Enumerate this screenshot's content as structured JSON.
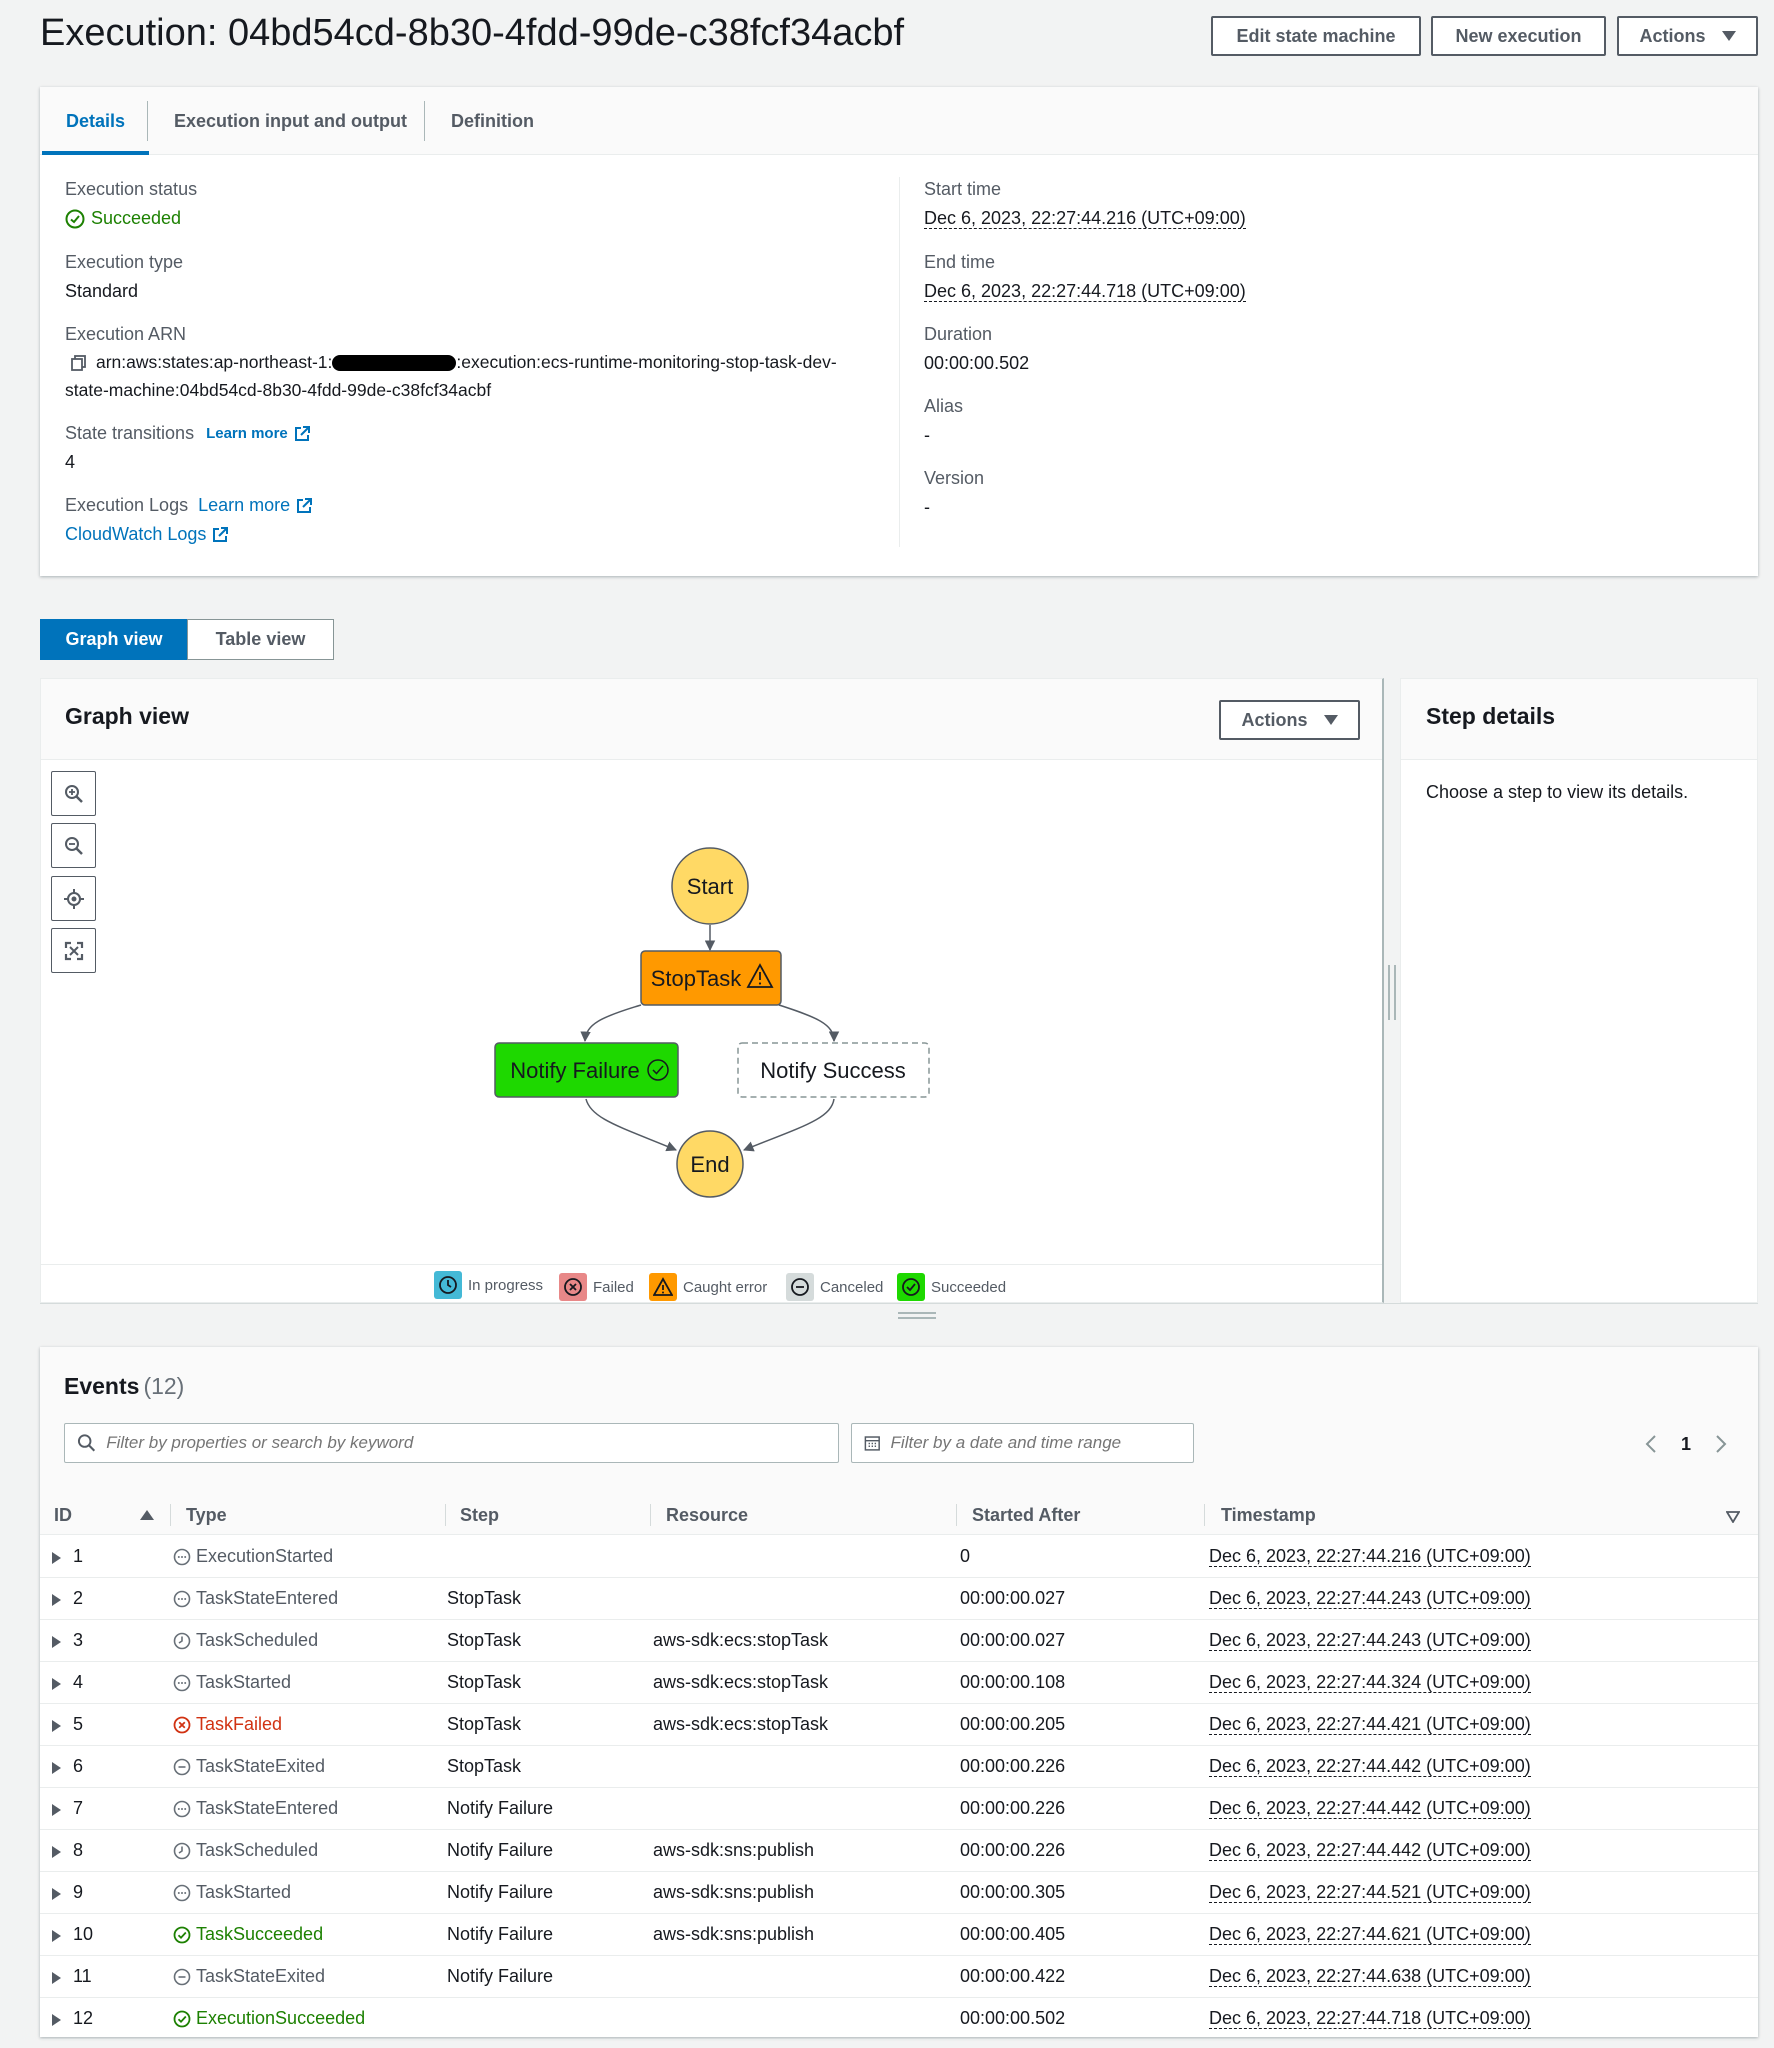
{
  "page": {
    "title": "Execution: 04bd54cd-8b30-4fdd-99de-c38fcf34acbf",
    "buttons": {
      "edit": "Edit state machine",
      "new_execution": "New execution",
      "actions": "Actions"
    }
  },
  "details": {
    "tabs": [
      "Details",
      "Execution input and output",
      "Definition"
    ],
    "execution_status_label": "Execution status",
    "execution_status": "Succeeded",
    "execution_type_label": "Execution type",
    "execution_type": "Standard",
    "execution_arn_label": "Execution ARN",
    "execution_arn_line1_prefix": "arn:aws:states:ap-northeast-1:",
    "execution_arn_line1_suffix": ":execution:ecs-runtime-monitoring-stop-task-dev-",
    "execution_arn_line2": "state-machine:04bd54cd-8b30-4fdd-99de-c38fcf34acbf",
    "state_transitions_label": "State transitions",
    "state_transitions_learn_more": "Learn more",
    "state_transitions": "4",
    "execution_logs_label": "Execution Logs",
    "execution_logs_learn_more": "Learn more",
    "cloudwatch_logs": "CloudWatch Logs",
    "start_time_label": "Start time",
    "start_time": "Dec 6, 2023, 22:27:44.216 (UTC+09:00)",
    "end_time_label": "End time",
    "end_time": "Dec 6, 2023, 22:27:44.718 (UTC+09:00)",
    "duration_label": "Duration",
    "duration": "00:00:00.502",
    "alias_label": "Alias",
    "alias": "-",
    "version_label": "Version",
    "version": "-"
  },
  "view_toggle": {
    "graph": "Graph view",
    "table": "Table view"
  },
  "graph": {
    "title": "Graph view",
    "actions": "Actions",
    "nodes": {
      "start": "Start",
      "stop_task": "StopTask",
      "notify_failure": "Notify Failure",
      "notify_success": "Notify Success",
      "end": "End"
    },
    "legend": {
      "in_progress": "In progress",
      "failed": "Failed",
      "caught_error": "Caught error",
      "canceled": "Canceled",
      "succeeded": "Succeeded"
    },
    "colors": {
      "start_end": "#ffd965",
      "stop_task": "#ff9900",
      "notify_failure": "#1ed800"
    }
  },
  "step_details": {
    "title": "Step details",
    "message": "Choose a step to view its details."
  },
  "events": {
    "title": "Events",
    "count": "(12)",
    "filter_placeholder": "Filter by properties or search by keyword",
    "date_placeholder": "Filter by a date and time range",
    "page": "1",
    "columns": {
      "id": "ID",
      "type": "Type",
      "step": "Step",
      "resource": "Resource",
      "started_after": "Started After",
      "timestamp": "Timestamp"
    },
    "rows": [
      {
        "id": "1",
        "type": "ExecutionStarted",
        "status": "neutral",
        "step": "",
        "resource": "",
        "started_after": "0",
        "timestamp": "Dec 6, 2023, 22:27:44.216 (UTC+09:00)"
      },
      {
        "id": "2",
        "type": "TaskStateEntered",
        "status": "neutral",
        "step": "StopTask",
        "resource": "",
        "started_after": "00:00:00.027",
        "timestamp": "Dec 6, 2023, 22:27:44.243 (UTC+09:00)"
      },
      {
        "id": "3",
        "type": "TaskScheduled",
        "status": "scheduled",
        "step": "StopTask",
        "resource": "aws-sdk:ecs:stopTask",
        "started_after": "00:00:00.027",
        "timestamp": "Dec 6, 2023, 22:27:44.243 (UTC+09:00)"
      },
      {
        "id": "4",
        "type": "TaskStarted",
        "status": "neutral",
        "step": "StopTask",
        "resource": "aws-sdk:ecs:stopTask",
        "started_after": "00:00:00.108",
        "timestamp": "Dec 6, 2023, 22:27:44.324 (UTC+09:00)"
      },
      {
        "id": "5",
        "type": "TaskFailed",
        "status": "failed",
        "step": "StopTask",
        "resource": "aws-sdk:ecs:stopTask",
        "started_after": "00:00:00.205",
        "timestamp": "Dec 6, 2023, 22:27:44.421 (UTC+09:00)"
      },
      {
        "id": "6",
        "type": "TaskStateExited",
        "status": "exited",
        "step": "StopTask",
        "resource": "",
        "started_after": "00:00:00.226",
        "timestamp": "Dec 6, 2023, 22:27:44.442 (UTC+09:00)"
      },
      {
        "id": "7",
        "type": "TaskStateEntered",
        "status": "neutral",
        "step": "Notify Failure",
        "resource": "",
        "started_after": "00:00:00.226",
        "timestamp": "Dec 6, 2023, 22:27:44.442 (UTC+09:00)"
      },
      {
        "id": "8",
        "type": "TaskScheduled",
        "status": "scheduled",
        "step": "Notify Failure",
        "resource": "aws-sdk:sns:publish",
        "started_after": "00:00:00.226",
        "timestamp": "Dec 6, 2023, 22:27:44.442 (UTC+09:00)"
      },
      {
        "id": "9",
        "type": "TaskStarted",
        "status": "neutral",
        "step": "Notify Failure",
        "resource": "aws-sdk:sns:publish",
        "started_after": "00:00:00.305",
        "timestamp": "Dec 6, 2023, 22:27:44.521 (UTC+09:00)"
      },
      {
        "id": "10",
        "type": "TaskSucceeded",
        "status": "succeeded",
        "step": "Notify Failure",
        "resource": "aws-sdk:sns:publish",
        "started_after": "00:00:00.405",
        "timestamp": "Dec 6, 2023, 22:27:44.621 (UTC+09:00)"
      },
      {
        "id": "11",
        "type": "TaskStateExited",
        "status": "exited",
        "step": "Notify Failure",
        "resource": "",
        "started_after": "00:00:00.422",
        "timestamp": "Dec 6, 2023, 22:27:44.638 (UTC+09:00)"
      },
      {
        "id": "12",
        "type": "ExecutionSucceeded",
        "status": "succeeded",
        "step": "",
        "resource": "",
        "started_after": "00:00:00.502",
        "timestamp": "Dec 6, 2023, 22:27:44.718 (UTC+09:00)"
      }
    ]
  }
}
